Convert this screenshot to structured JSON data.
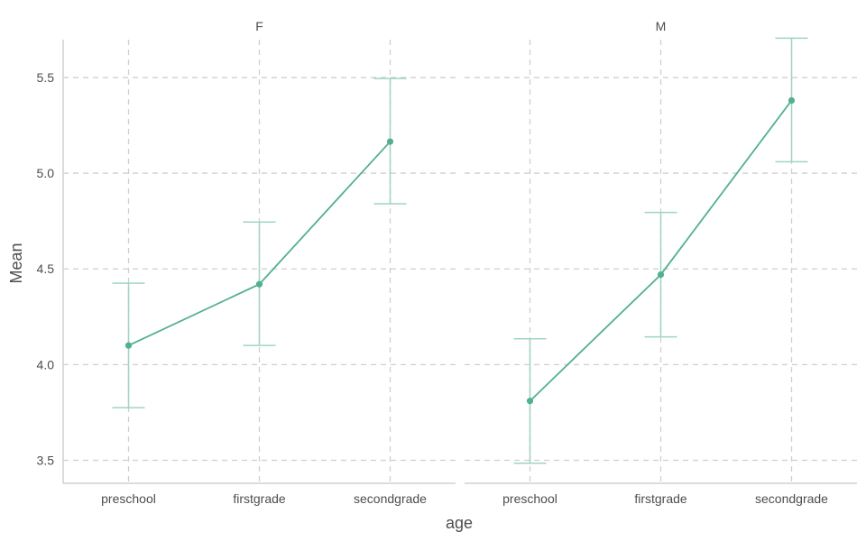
{
  "chart_data": {
    "type": "line",
    "xlabel": "age",
    "ylabel": "Mean",
    "categories": [
      "preschool",
      "firstgrade",
      "secondgrade"
    ],
    "ylim": [
      3.38,
      5.82
    ],
    "yticks": [
      3.5,
      4.0,
      4.5,
      5.0,
      5.5
    ],
    "ytick_labels": [
      "3.5",
      "4.0",
      "4.5",
      "5.0",
      "5.5"
    ],
    "grid": true,
    "color": "#52b091",
    "errorbar_color": "#9fd4c4",
    "panels": [
      {
        "label": "F",
        "values": [
          4.1,
          4.42,
          5.165
        ],
        "lower": [
          3.775,
          4.1,
          4.84
        ],
        "upper": [
          4.425,
          4.745,
          5.495
        ]
      },
      {
        "label": "M",
        "values": [
          3.81,
          4.47,
          5.38
        ],
        "lower": [
          3.485,
          4.145,
          5.06
        ],
        "upper": [
          4.135,
          4.795,
          5.705
        ]
      }
    ]
  }
}
